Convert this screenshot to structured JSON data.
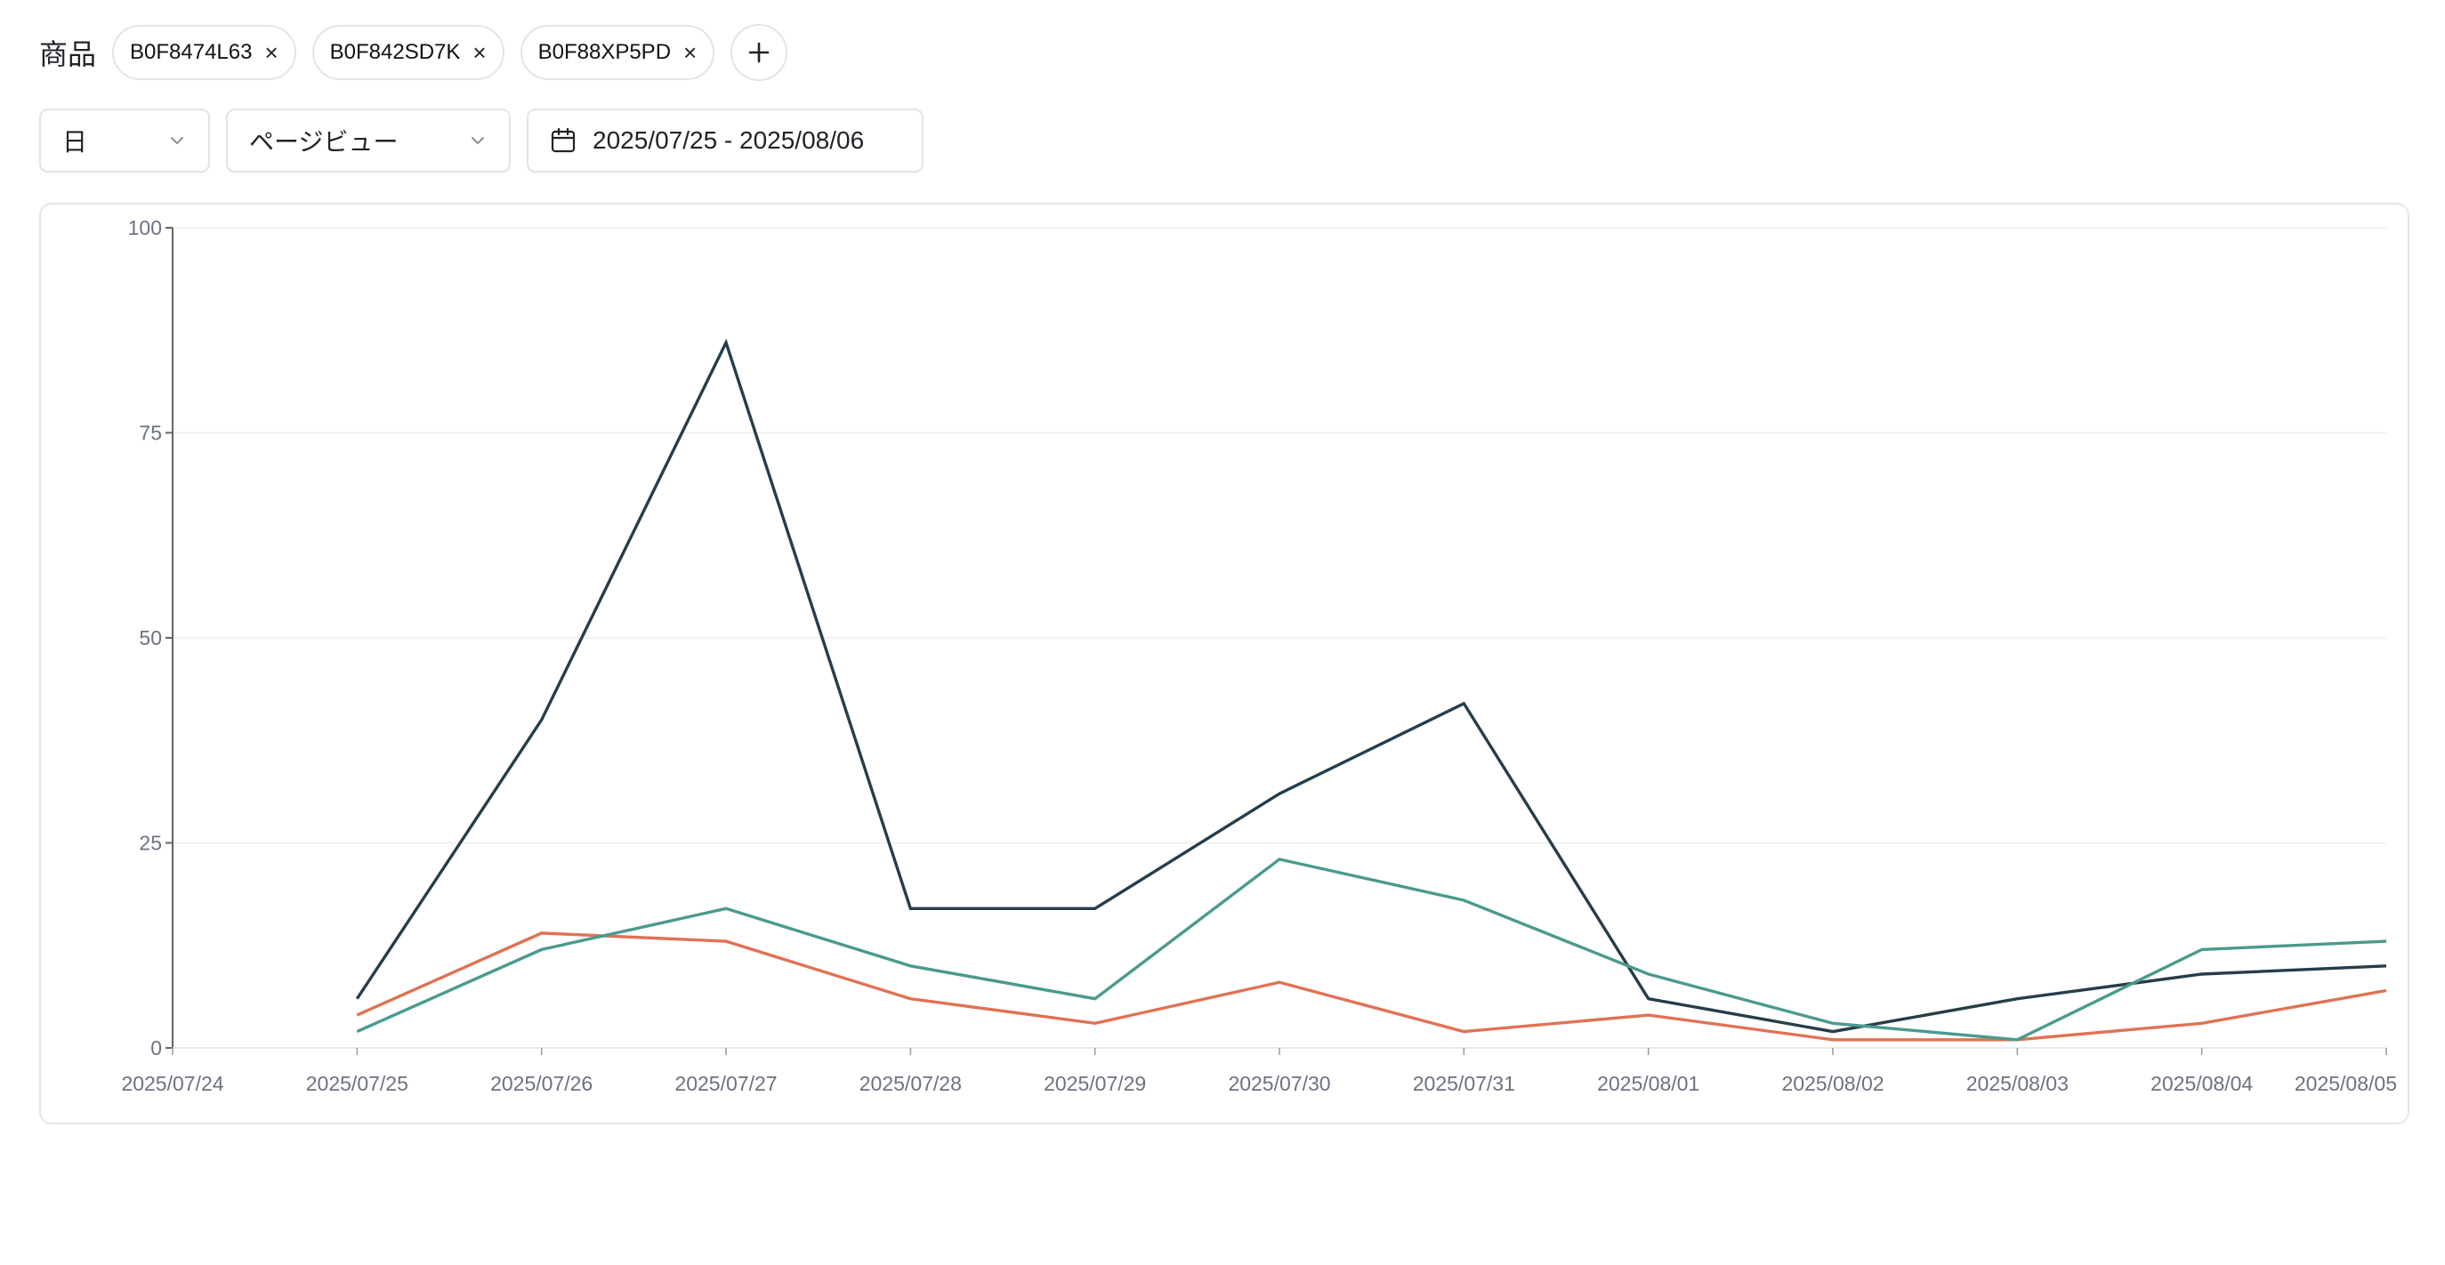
{
  "filters": {
    "product_label": "商品",
    "products": [
      "B0F8474L63",
      "B0F842SD7K",
      "B0F88XP5PD"
    ],
    "close_glyph": "×",
    "granularity": "日",
    "metric": "ページビュー",
    "date_range": "2025/07/25 - 2025/08/06"
  },
  "colors": {
    "series": [
      "#263d4a",
      "#e07254",
      "#4a9a8e"
    ],
    "grid": "#eeeeee",
    "axis": "#666666"
  },
  "chart_data": {
    "type": "line",
    "x": [
      "2025/07/24",
      "2025/07/25",
      "2025/07/26",
      "2025/07/27",
      "2025/07/28",
      "2025/07/29",
      "2025/07/30",
      "2025/07/31",
      "2025/08/01",
      "2025/08/02",
      "2025/08/03",
      "2025/08/04",
      "2025/08/05"
    ],
    "yticks": [
      0,
      25,
      50,
      75,
      100
    ],
    "ylim": [
      0,
      100
    ],
    "grid": true,
    "legend": "none",
    "series": [
      {
        "color": "#263d4a",
        "values": [
          null,
          6,
          40,
          86,
          17,
          17,
          31,
          42,
          6,
          2,
          6,
          9,
          10
        ]
      },
      {
        "color": "#e07254",
        "values": [
          null,
          4,
          14,
          13,
          6,
          3,
          8,
          2,
          4,
          1,
          1,
          3,
          7
        ]
      },
      {
        "color": "#4a9a8e",
        "values": [
          null,
          2,
          12,
          17,
          10,
          6,
          23,
          18,
          9,
          3,
          1,
          12,
          13
        ]
      }
    ]
  }
}
